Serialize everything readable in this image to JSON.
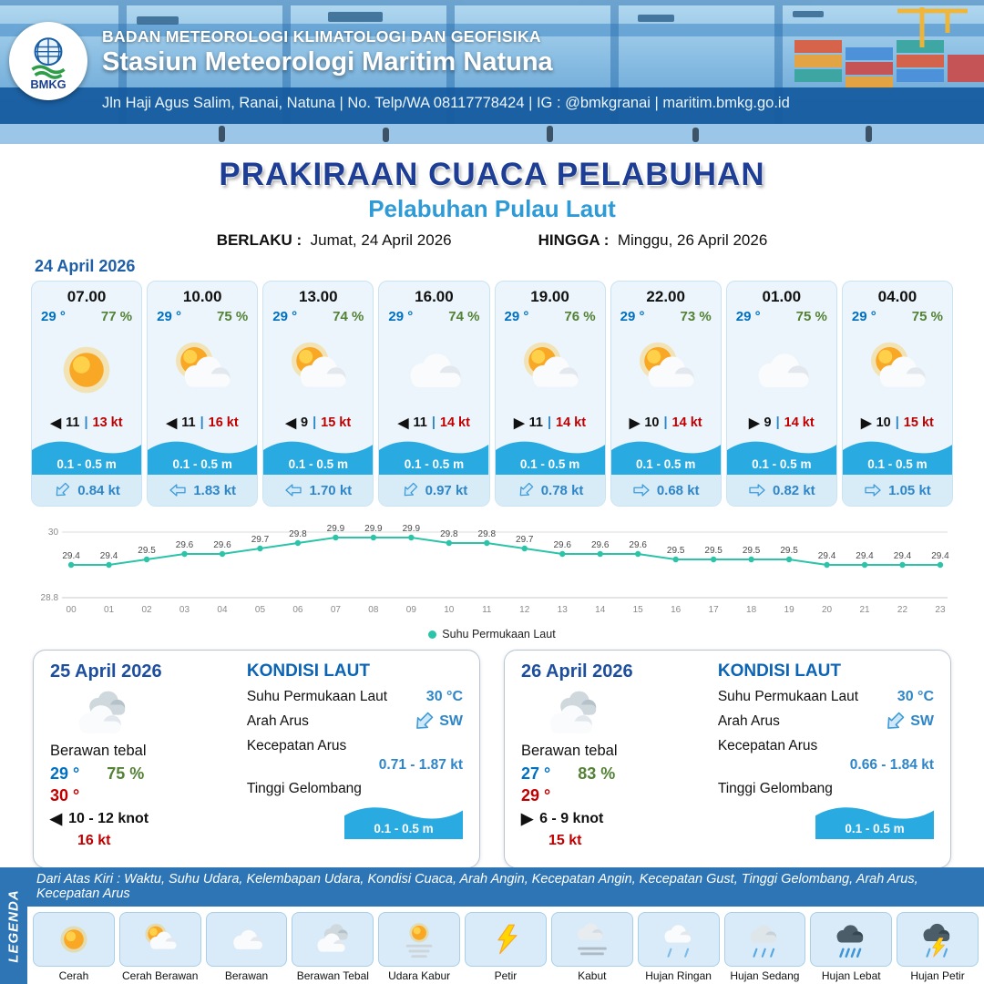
{
  "ui": {
    "sep": "|"
  },
  "header": {
    "logo_text": "BMKG",
    "agency": "BADAN METEOROLOGI KLIMATOLOGI DAN GEOFISIKA",
    "station": "Stasiun Meteorologi Maritim Natuna",
    "contact": "Jln Haji Agus Salim, Ranai, Natuna  | No. Telp/WA 08117778424 | IG : @bmkgranai | maritim.bmkg.go.id"
  },
  "title": {
    "main": "PRAKIRAAN CUACA PELABUHAN",
    "subtitle": "Pelabuhan Pulau Laut",
    "valid_label": "BERLAKU :",
    "valid_value": "Jumat, 24 April 2026",
    "until_label": "HINGGA :",
    "until_value": "Minggu, 26 April 2026"
  },
  "forecast": {
    "date": "24 April 2026",
    "cards": [
      {
        "time": "07.00",
        "temp": "29 °",
        "humidity": "77 %",
        "icon": "cerah",
        "wind_dir": "W",
        "wind_speed": "11",
        "gust": "13 kt",
        "wave_height": "0.1 - 0.5 m",
        "current_dir": "SW",
        "current_speed": "0.84 kt"
      },
      {
        "time": "10.00",
        "temp": "29 °",
        "humidity": "75 %",
        "icon": "cerah-berawan",
        "wind_dir": "W",
        "wind_speed": "11",
        "gust": "16 kt",
        "wave_height": "0.1 - 0.5 m",
        "current_dir": "W",
        "current_speed": "1.83 kt"
      },
      {
        "time": "13.00",
        "temp": "29 °",
        "humidity": "74 %",
        "icon": "cerah-berawan",
        "wind_dir": "W",
        "wind_speed": "9",
        "gust": "15 kt",
        "wave_height": "0.1 - 0.5 m",
        "current_dir": "W",
        "current_speed": "1.70 kt"
      },
      {
        "time": "16.00",
        "temp": "29 °",
        "humidity": "74 %",
        "icon": "berawan",
        "wind_dir": "W",
        "wind_speed": "11",
        "gust": "14 kt",
        "wave_height": "0.1 - 0.5 m",
        "current_dir": "SW",
        "current_speed": "0.97 kt"
      },
      {
        "time": "19.00",
        "temp": "29 °",
        "humidity": "76 %",
        "icon": "cerah-berawan",
        "wind_dir": "E",
        "wind_speed": "11",
        "gust": "14 kt",
        "wave_height": "0.1 - 0.5 m",
        "current_dir": "SW",
        "current_speed": "0.78 kt"
      },
      {
        "time": "22.00",
        "temp": "29 °",
        "humidity": "73 %",
        "icon": "cerah-berawan",
        "wind_dir": "E",
        "wind_speed": "10",
        "gust": "14 kt",
        "wave_height": "0.1 - 0.5 m",
        "current_dir": "E",
        "current_speed": "0.68 kt"
      },
      {
        "time": "01.00",
        "temp": "29 °",
        "humidity": "75 %",
        "icon": "berawan",
        "wind_dir": "E",
        "wind_speed": "9",
        "gust": "14 kt",
        "wave_height": "0.1 - 0.5 m",
        "current_dir": "E",
        "current_speed": "0.82 kt"
      },
      {
        "time": "04.00",
        "temp": "29 °",
        "humidity": "75 %",
        "icon": "cerah-berawan",
        "wind_dir": "E",
        "wind_speed": "10",
        "gust": "15 kt",
        "wave_height": "0.1 - 0.5 m",
        "current_dir": "E",
        "current_speed": "1.05 kt"
      }
    ]
  },
  "chart_data": {
    "type": "line",
    "legend": "Suhu Permukaan Laut",
    "x": [
      "00",
      "01",
      "02",
      "03",
      "04",
      "05",
      "06",
      "07",
      "08",
      "09",
      "10",
      "11",
      "12",
      "13",
      "14",
      "15",
      "16",
      "17",
      "18",
      "19",
      "20",
      "21",
      "22",
      "23"
    ],
    "values": [
      29.4,
      29.4,
      29.5,
      29.6,
      29.6,
      29.7,
      29.8,
      29.9,
      29.9,
      29.9,
      29.8,
      29.8,
      29.7,
      29.6,
      29.6,
      29.6,
      29.5,
      29.5,
      29.5,
      29.5,
      29.4,
      29.4,
      29.4,
      29.4
    ],
    "ylim": [
      28.8,
      30
    ],
    "line_color": "#2bc4a8",
    "grid": true,
    "legend_position": "bottom"
  },
  "days": [
    {
      "date": "25 April 2026",
      "condition": "Berawan tebal",
      "icon": "berawan-tebal",
      "temp_min": "29 °",
      "temp_max": "30 °",
      "humidity": "75 %",
      "wind_dir": "W",
      "wind_range": "10 - 12 knot",
      "gust": "16 kt",
      "sea": {
        "title": "KONDISI LAUT",
        "sst_label": "Suhu Permukaan Laut",
        "sst_value": "30 °C",
        "current_dir_label": "Arah Arus",
        "current_dir": "SW",
        "current_speed_label": "Kecepatan Arus",
        "current_speed": "0.71 - 1.87 kt",
        "wave_label": "Tinggi Gelombang",
        "wave_value": "0.1 - 0.5 m"
      }
    },
    {
      "date": "26 April 2026",
      "condition": "Berawan tebal",
      "icon": "berawan-tebal",
      "temp_min": "27 °",
      "temp_max": "29 °",
      "humidity": "83 %",
      "wind_dir": "E",
      "wind_range": "6 - 9 knot",
      "gust": "15 kt",
      "sea": {
        "title": "KONDISI LAUT",
        "sst_label": "Suhu Permukaan Laut",
        "sst_value": "30 °C",
        "current_dir_label": "Arah Arus",
        "current_dir": "SW",
        "current_speed_label": "Kecepatan Arus",
        "current_speed": "0.66 - 1.84 kt",
        "wave_label": "Tinggi Gelombang",
        "wave_value": "0.1 - 0.5 m"
      }
    }
  ],
  "legend": {
    "title": "LEGENDA",
    "description": "Dari Atas Kiri : Waktu, Suhu Udara, Kelembapan Udara, Kondisi Cuaca, Arah Angin, Kecepatan Angin, Kecepatan Gust, Tinggi Gelombang, Arah Arus, Kecepatan Arus",
    "items": [
      {
        "label": "Cerah",
        "icon": "cerah"
      },
      {
        "label": "Cerah Berawan",
        "icon": "cerah-berawan"
      },
      {
        "label": "Berawan",
        "icon": "berawan"
      },
      {
        "label": "Berawan Tebal",
        "icon": "berawan-tebal"
      },
      {
        "label": "Udara Kabur",
        "icon": "udara-kabur"
      },
      {
        "label": "Petir",
        "icon": "petir"
      },
      {
        "label": "Kabut",
        "icon": "kabut"
      },
      {
        "label": "Hujan Ringan",
        "icon": "hujan-ringan"
      },
      {
        "label": "Hujan Sedang",
        "icon": "hujan-sedang"
      },
      {
        "label": "Hujan Lebat",
        "icon": "hujan-lebat"
      },
      {
        "label": "Hujan Petir",
        "icon": "hujan-petir"
      }
    ]
  },
  "colors": {
    "title_blue": "#1d3e94",
    "subtitle_blue": "#2e9bd6",
    "temp_blue": "#0070c0",
    "humidity_green": "#538135",
    "gust_red": "#c00000",
    "wave_blue": "#29abe2",
    "chart_teal": "#2bc4a8",
    "legend_bar_blue": "#2e75b6"
  }
}
